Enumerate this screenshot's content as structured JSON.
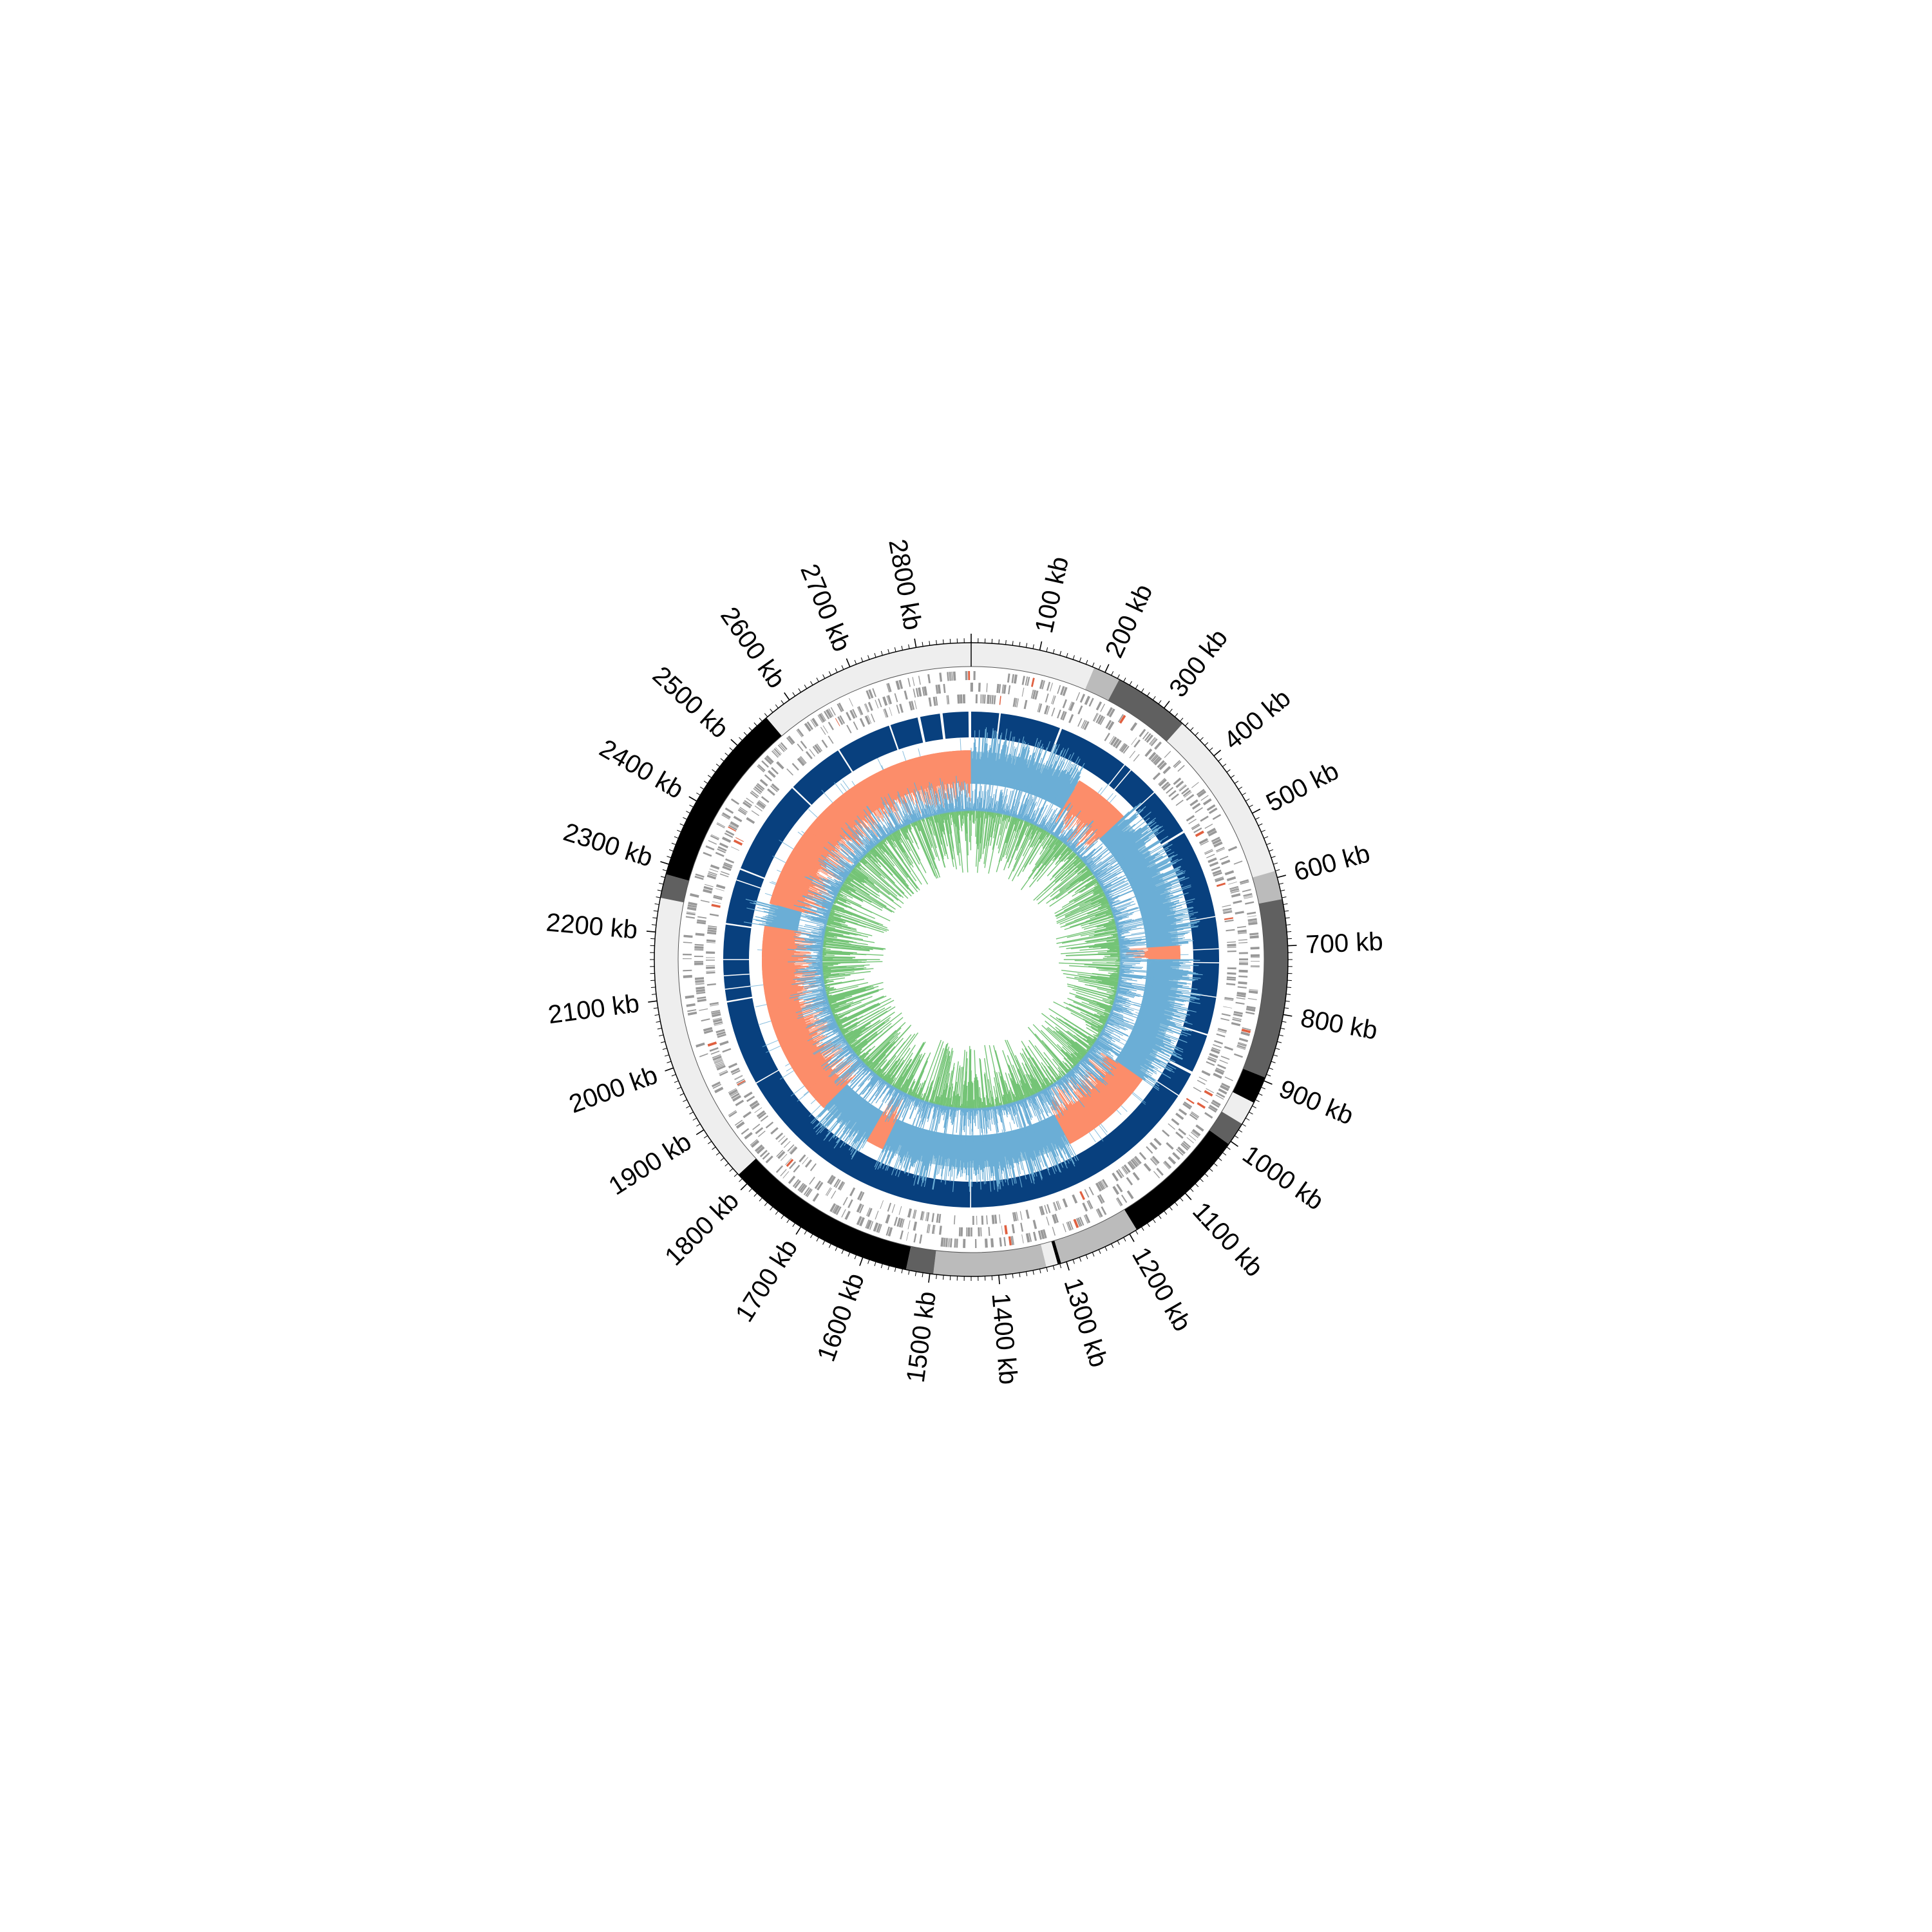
{
  "chart_data": {
    "type": "circular-genome",
    "genome_length_kb": 2880,
    "axis": {
      "unit": "kb",
      "tick_labels": [
        "100 kb",
        "200 kb",
        "300 kb",
        "400 kb",
        "500 kb",
        "600 kb",
        "700 kb",
        "800 kb",
        "900 kb",
        "1000 kb",
        "1100 kb",
        "1200 kb",
        "1300 kb",
        "1400 kb",
        "1500 kb",
        "1600 kb",
        "1700 kb",
        "1800 kb",
        "1900 kb",
        "2000 kb",
        "2100 kb",
        "2200 kb",
        "2300 kb",
        "2400 kb",
        "2500 kb",
        "2600 kb",
        "2700 kb",
        "2800 kb"
      ]
    },
    "outer_segments": [
      {
        "start": 0,
        "end": 183,
        "color": "#eeeeee"
      },
      {
        "start": 183,
        "end": 223,
        "color": "#bbbbbb"
      },
      {
        "start": 223,
        "end": 335,
        "color": "#606060"
      },
      {
        "start": 335,
        "end": 590,
        "color": "#eeeeee"
      },
      {
        "start": 590,
        "end": 632,
        "color": "#bbbbbb"
      },
      {
        "start": 632,
        "end": 895,
        "color": "#606060"
      },
      {
        "start": 895,
        "end": 935,
        "color": "#000000"
      },
      {
        "start": 935,
        "end": 970,
        "color": "#eeeeee"
      },
      {
        "start": 970,
        "end": 1005,
        "color": "#606060"
      },
      {
        "start": 1005,
        "end": 1188,
        "color": "#000000"
      },
      {
        "start": 1188,
        "end": 1308,
        "color": "#bbbbbb"
      },
      {
        "start": 1308,
        "end": 1313,
        "color": "#000000"
      },
      {
        "start": 1313,
        "end": 1330,
        "color": "#eeeeee"
      },
      {
        "start": 1330,
        "end": 1495,
        "color": "#bbbbbb"
      },
      {
        "start": 1495,
        "end": 1535,
        "color": "#606060"
      },
      {
        "start": 1535,
        "end": 1818,
        "color": "#000000"
      },
      {
        "start": 1818,
        "end": 2250,
        "color": "#eeeeee"
      },
      {
        "start": 2250,
        "end": 2285,
        "color": "#606060"
      },
      {
        "start": 2285,
        "end": 2558,
        "color": "#000000"
      },
      {
        "start": 2558,
        "end": 2880,
        "color": "#eeeeee"
      }
    ],
    "blue_blocks": [
      {
        "start": 0,
        "end": 52
      },
      {
        "start": 55,
        "end": 168
      },
      {
        "start": 172,
        "end": 305
      },
      {
        "start": 307,
        "end": 320
      },
      {
        "start": 322,
        "end": 380
      },
      {
        "start": 382,
        "end": 470
      },
      {
        "start": 474,
        "end": 725
      },
      {
        "start": 727,
        "end": 860
      },
      {
        "start": 863,
        "end": 935
      },
      {
        "start": 940,
        "end": 985
      },
      {
        "start": 987,
        "end": 1440
      },
      {
        "start": 1442,
        "end": 1920
      },
      {
        "start": 1922,
        "end": 2080
      },
      {
        "start": 2083,
        "end": 2225
      },
      {
        "start": 2228,
        "end": 2330
      },
      {
        "start": 2333,
        "end": 2510
      },
      {
        "start": 2513,
        "end": 2620
      },
      {
        "start": 2623,
        "end": 2725
      },
      {
        "start": 2728,
        "end": 2780
      },
      {
        "start": 2785,
        "end": 2822
      },
      {
        "start": 2827,
        "end": 2875
      }
    ],
    "gc_skew_negative_ranges": [
      [
        250,
        375
      ],
      [
        690,
        720
      ],
      [
        1000,
        1215
      ],
      [
        1640,
        1680
      ],
      [
        1800,
        2235
      ],
      [
        2285,
        2880
      ]
    ],
    "colors": {
      "blue_track": "#08407e",
      "skew_positive": "#6baed6",
      "skew_positive_fill": "#9ecae1",
      "skew_negative": "#fc8d6a",
      "content_line": "#6baed6",
      "content_fill": "#74c476",
      "gene_marks": "#999999",
      "gene_highlight": "#e06040"
    },
    "grid": false,
    "legend": "none"
  }
}
